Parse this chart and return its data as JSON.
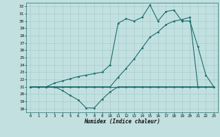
{
  "xlabel": "Humidex (Indice chaleur)",
  "background_color": "#c2e0e0",
  "line_color": "#1a6b6b",
  "grid_color": "#a0c8c8",
  "xlim": [
    -0.5,
    23.5
  ],
  "ylim": [
    17.5,
    32.5
  ],
  "xticks": [
    0,
    1,
    2,
    3,
    4,
    5,
    6,
    7,
    8,
    9,
    10,
    11,
    12,
    13,
    14,
    15,
    16,
    17,
    18,
    19,
    20,
    21,
    22,
    23
  ],
  "yticks": [
    18,
    19,
    20,
    21,
    22,
    23,
    24,
    25,
    26,
    27,
    28,
    29,
    30,
    31,
    32
  ],
  "series_bottom_x": [
    0,
    1,
    2,
    3,
    4,
    5,
    6,
    7,
    8,
    9,
    10,
    11,
    12,
    13,
    14,
    15,
    16,
    17,
    18,
    19,
    20,
    21
  ],
  "series_bottom_y": [
    21,
    21,
    21,
    21,
    20.5,
    19.8,
    19.2,
    18.1,
    18.1,
    19.3,
    20.3,
    21,
    21,
    21,
    21,
    21,
    21,
    21,
    21,
    21,
    21,
    21
  ],
  "series_flat_x": [
    0,
    1,
    2,
    3,
    4,
    5,
    6,
    7,
    8,
    9,
    10,
    11,
    12,
    13,
    14,
    15,
    16,
    17,
    18,
    19,
    20,
    21,
    22,
    23
  ],
  "series_flat_y": [
    21,
    21,
    21,
    21,
    21,
    21,
    21,
    21,
    21,
    21,
    21,
    21,
    21,
    21,
    21,
    21,
    21,
    21,
    21,
    21,
    21,
    21,
    21,
    21
  ],
  "series_top_x": [
    0,
    1,
    2,
    3,
    4,
    5,
    6,
    7,
    8,
    9,
    10,
    11,
    12,
    13,
    14,
    15,
    16,
    17,
    18,
    19,
    20,
    21,
    22,
    23
  ],
  "series_top_y": [
    21,
    21,
    21,
    21.5,
    21.8,
    22.1,
    22.4,
    22.6,
    22.8,
    23.0,
    24.0,
    29.7,
    30.3,
    30.0,
    30.5,
    32.2,
    30.0,
    31.3,
    31.5,
    30.0,
    30.0,
    26.5,
    22.6,
    21
  ],
  "series_mid_x": [
    0,
    1,
    2,
    3,
    4,
    5,
    6,
    7,
    8,
    9,
    10,
    11,
    12,
    13,
    14,
    15,
    16,
    17,
    18,
    19,
    20,
    21,
    22,
    23
  ],
  "series_mid_y": [
    21,
    21,
    21,
    21,
    21,
    21,
    21,
    21,
    21,
    21,
    21,
    22.3,
    23.5,
    24.8,
    26.3,
    27.8,
    28.5,
    29.5,
    30.0,
    30.2,
    30.5,
    21,
    21,
    21
  ]
}
